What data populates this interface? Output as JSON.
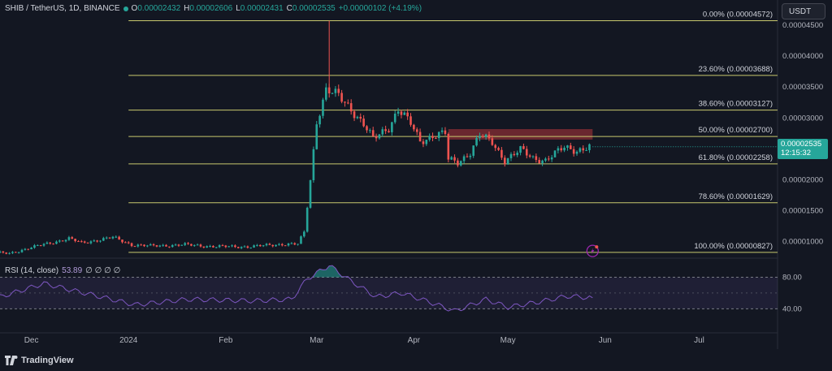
{
  "header": {
    "symbol": "SHIB / TetherUS, 1D, BINANCE",
    "open_label": "O",
    "open": "0.00002432",
    "high_label": "H",
    "high": "0.00002606",
    "low_label": "L",
    "low": "0.00002431",
    "close_label": "C",
    "close": "0.00002535",
    "change": "+0.00000102 (+4.19%)"
  },
  "currency_button": "USDT",
  "price_badge": {
    "price": "0.00002535",
    "countdown": "12:15:32"
  },
  "rsi": {
    "title": "RSI (14, close)",
    "value": "53.89",
    "placeholders": "∅ ∅ ∅ ∅",
    "levels": [
      {
        "label": "80.00",
        "value": 80
      },
      {
        "label": "40.00",
        "value": 40
      }
    ]
  },
  "price_axis": [
    {
      "label": "0.00004500",
      "value": 4.5e-05
    },
    {
      "label": "0.00004000",
      "value": 4e-05
    },
    {
      "label": "0.00003500",
      "value": 3.5e-05
    },
    {
      "label": "0.00003000",
      "value": 3e-05
    },
    {
      "label": "0.00002500",
      "value": 2.5e-05
    },
    {
      "label": "0.00002000",
      "value": 2e-05
    },
    {
      "label": "0.00001500",
      "value": 1.5e-05
    },
    {
      "label": "0.00001000",
      "value": 1e-05
    }
  ],
  "time_axis": [
    {
      "label": "Dec",
      "date": "2023-12-01"
    },
    {
      "label": "2024",
      "date": "2024-01-01"
    },
    {
      "label": "Feb",
      "date": "2024-02-01"
    },
    {
      "label": "Mar",
      "date": "2024-03-01"
    },
    {
      "label": "Apr",
      "date": "2024-04-01"
    },
    {
      "label": "May",
      "date": "2024-05-01"
    },
    {
      "label": "Jun",
      "date": "2024-06-01"
    },
    {
      "label": "Jul",
      "date": "2024-07-01"
    }
  ],
  "fib_levels": [
    {
      "label": "0.00% (0.00004572)",
      "value": 4.572e-05
    },
    {
      "label": "23.60% (0.00003688)",
      "value": 3.688e-05
    },
    {
      "label": "38.60% (0.00003127)",
      "value": 3.127e-05
    },
    {
      "label": "50.00% (0.00002700)",
      "value": 2.7e-05
    },
    {
      "label": "61.80% (0.00002258)",
      "value": 2.258e-05
    },
    {
      "label": "78.60% (0.00001629)",
      "value": 1.629e-05
    },
    {
      "label": "100.00% (0.00000827)",
      "value": 8.27e-06
    }
  ],
  "fib_start_date": "2024-01-01",
  "resistance_zone": {
    "start_date": "2024-04-12",
    "end_date": "2024-05-28",
    "low": 2.65e-05,
    "high": 2.82e-05
  },
  "footer": {
    "brand": "TradingView"
  },
  "colors": {
    "background": "#131722",
    "up": "#26a69a",
    "down": "#ef5350",
    "fib": "#c8c86e",
    "rsi_line": "#7e57c2",
    "zone": "#b2343a"
  },
  "chart_data": {
    "type": "candlestick",
    "symbol": "SHIB / TetherUS",
    "interval": "1D",
    "exchange": "BINANCE",
    "y_range": [
      7.6e-06,
      4.67e-05
    ],
    "x_range": [
      "2023-11-21",
      "2024-07-26"
    ],
    "segments": [
      {
        "date": "2023-11-21",
        "price": 8.2e-06
      },
      {
        "date": "2023-11-25",
        "price": 8.1e-06
      },
      {
        "date": "2023-11-30",
        "price": 8.8e-06
      },
      {
        "date": "2023-12-08",
        "price": 9.8e-06
      },
      {
        "date": "2023-12-14",
        "price": 1.05e-05
      },
      {
        "date": "2023-12-18",
        "price": 9.8e-06
      },
      {
        "date": "2023-12-28",
        "price": 1.07e-05
      },
      {
        "date": "2024-01-03",
        "price": 9.5e-06
      },
      {
        "date": "2024-01-09",
        "price": 9.3e-06
      },
      {
        "date": "2024-01-20",
        "price": 9.5e-06
      },
      {
        "date": "2024-01-30",
        "price": 9.2e-06
      },
      {
        "date": "2024-02-10",
        "price": 9.2e-06
      },
      {
        "date": "2024-02-20",
        "price": 9.6e-06
      },
      {
        "date": "2024-02-25",
        "price": 9.6e-06
      },
      {
        "date": "2024-02-27",
        "price": 1.15e-05
      },
      {
        "date": "2024-02-29",
        "price": 2e-05
      },
      {
        "date": "2024-03-02",
        "price": 2.95e-05
      },
      {
        "date": "2024-03-05",
        "price": 3.45e-05
      },
      {
        "date": "2024-03-09",
        "price": 3.35e-05
      },
      {
        "date": "2024-03-13",
        "price": 3.15e-05
      },
      {
        "date": "2024-03-17",
        "price": 2.9e-05
      },
      {
        "date": "2024-03-20",
        "price": 2.65e-05
      },
      {
        "date": "2024-03-25",
        "price": 2.85e-05
      },
      {
        "date": "2024-03-28",
        "price": 3.15e-05
      },
      {
        "date": "2024-04-01",
        "price": 2.9e-05
      },
      {
        "date": "2024-04-04",
        "price": 2.62e-05
      },
      {
        "date": "2024-04-08",
        "price": 2.72e-05
      },
      {
        "date": "2024-04-12",
        "price": 2.75e-05
      },
      {
        "date": "2024-04-13",
        "price": 2.32e-05
      },
      {
        "date": "2024-04-16",
        "price": 2.28e-05
      },
      {
        "date": "2024-04-20",
        "price": 2.45e-05
      },
      {
        "date": "2024-04-23",
        "price": 2.72e-05
      },
      {
        "date": "2024-04-27",
        "price": 2.6e-05
      },
      {
        "date": "2024-05-01",
        "price": 2.32e-05
      },
      {
        "date": "2024-05-06",
        "price": 2.48e-05
      },
      {
        "date": "2024-05-10",
        "price": 2.35e-05
      },
      {
        "date": "2024-05-14",
        "price": 2.32e-05
      },
      {
        "date": "2024-05-20",
        "price": 2.52e-05
      },
      {
        "date": "2024-05-24",
        "price": 2.48e-05
      },
      {
        "date": "2024-05-28",
        "price": 2.535e-05
      }
    ],
    "last_close": 2.535e-05,
    "high_wick": {
      "date": "2024-03-05",
      "price": 4.57e-05
    },
    "rsi_series": [
      {
        "date": "2023-11-21",
        "value": 55
      },
      {
        "date": "2023-12-05",
        "value": 72
      },
      {
        "date": "2023-12-20",
        "value": 58
      },
      {
        "date": "2024-01-03",
        "value": 45
      },
      {
        "date": "2024-01-20",
        "value": 52
      },
      {
        "date": "2024-02-10",
        "value": 50
      },
      {
        "date": "2024-02-22",
        "value": 52
      },
      {
        "date": "2024-02-27",
        "value": 78
      },
      {
        "date": "2024-03-05",
        "value": 95
      },
      {
        "date": "2024-03-12",
        "value": 75
      },
      {
        "date": "2024-03-20",
        "value": 55
      },
      {
        "date": "2024-03-28",
        "value": 60
      },
      {
        "date": "2024-04-05",
        "value": 50
      },
      {
        "date": "2024-04-14",
        "value": 37
      },
      {
        "date": "2024-04-24",
        "value": 52
      },
      {
        "date": "2024-05-01",
        "value": 42
      },
      {
        "date": "2024-05-10",
        "value": 48
      },
      {
        "date": "2024-05-20",
        "value": 56
      },
      {
        "date": "2024-05-28",
        "value": 53.89
      }
    ],
    "rsi_range": [
      28,
      100
    ]
  }
}
